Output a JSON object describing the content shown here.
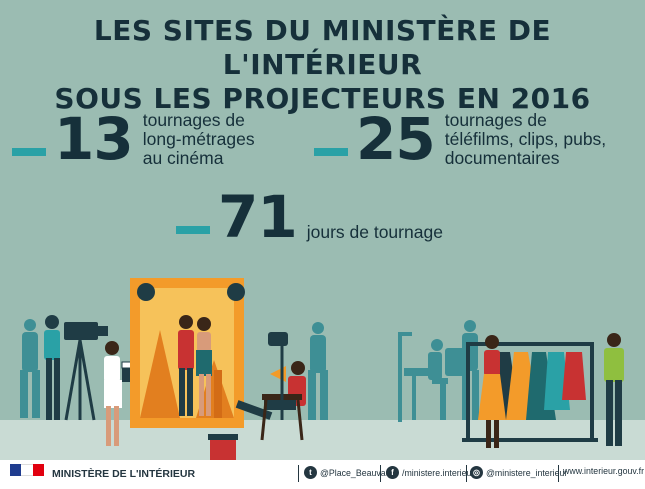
{
  "title": {
    "line1": "LES SITES DU MINISTÈRE DE L'INTÉRIEUR",
    "line2": "SOUS LES PROJECTEURS EN 2016"
  },
  "stats": [
    {
      "value": "13",
      "lines": [
        "tournages de",
        "long-métrages",
        "au cinéma"
      ]
    },
    {
      "value": "25",
      "lines": [
        "tournages de",
        "téléfilms, clips, pubs,",
        "documentaires"
      ]
    },
    {
      "value": "71",
      "lines": [
        "jours de tournage"
      ]
    }
  ],
  "colors": {
    "background": "#9bbcb2",
    "accent": "#2aa1a6",
    "text": "#16303a",
    "orange": "#f39b2a"
  },
  "footer": {
    "ministry": "MINISTÈRE DE L'INTÉRIEUR",
    "twitter": "@Place_Beauvau",
    "facebook": "/ministere.interieur",
    "instagram": "@ministere_interieur",
    "website": "www.interieur.gouv.fr",
    "icons": [
      "twitter-icon",
      "facebook-icon",
      "instagram-icon"
    ]
  }
}
